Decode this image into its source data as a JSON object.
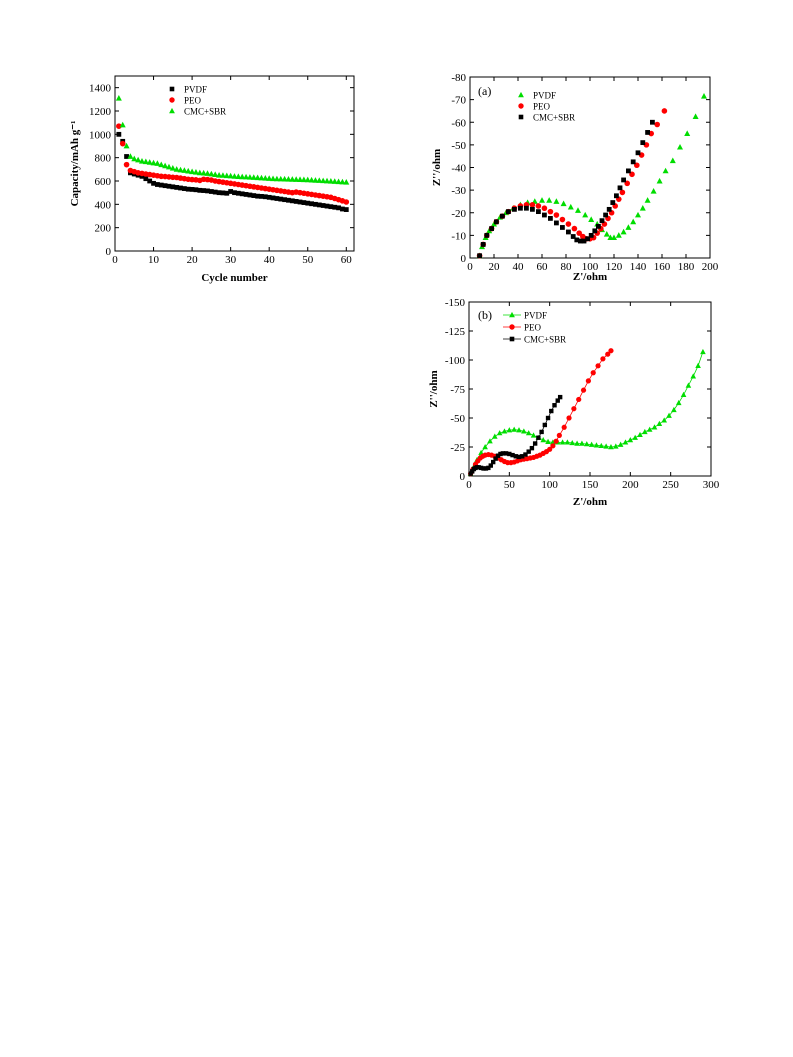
{
  "chart_data": [
    {
      "type": "scatter",
      "xlabel": "Cycle number",
      "ylabel": "Capacity/mAh g⁻¹",
      "xlim": [
        0,
        62
      ],
      "ylim": [
        0,
        1500
      ],
      "xticks": [
        0,
        10,
        20,
        30,
        40,
        50,
        60
      ],
      "yticks": [
        0,
        200,
        400,
        600,
        800,
        1000,
        1200,
        1400
      ],
      "legend": "top-center",
      "series": [
        {
          "name": "PVDF",
          "color": "#000000",
          "marker": "square",
          "x": [
            1,
            2,
            3,
            4,
            5,
            6,
            7,
            8,
            9,
            10,
            11,
            12,
            13,
            14,
            15,
            16,
            17,
            18,
            19,
            20,
            21,
            22,
            23,
            24,
            25,
            26,
            27,
            28,
            29,
            30,
            31,
            32,
            33,
            34,
            35,
            36,
            37,
            38,
            39,
            40,
            41,
            42,
            43,
            44,
            45,
            46,
            47,
            48,
            49,
            50,
            51,
            52,
            53,
            54,
            55,
            56,
            57,
            58,
            59,
            60
          ],
          "y": [
            1000,
            940,
            810,
            670,
            660,
            650,
            640,
            620,
            600,
            580,
            570,
            565,
            560,
            555,
            550,
            545,
            540,
            535,
            530,
            528,
            525,
            520,
            518,
            515,
            510,
            505,
            500,
            498,
            495,
            510,
            500,
            495,
            490,
            485,
            480,
            475,
            470,
            468,
            465,
            460,
            455,
            450,
            445,
            440,
            435,
            430,
            425,
            420,
            415,
            410,
            405,
            400,
            395,
            390,
            385,
            380,
            375,
            370,
            360,
            355
          ]
        },
        {
          "name": "PEO",
          "color": "#ff0000",
          "marker": "circle",
          "x": [
            1,
            2,
            3,
            4,
            5,
            6,
            7,
            8,
            9,
            10,
            11,
            12,
            13,
            14,
            15,
            16,
            17,
            18,
            19,
            20,
            21,
            22,
            23,
            24,
            25,
            26,
            27,
            28,
            29,
            30,
            31,
            32,
            33,
            34,
            35,
            36,
            37,
            38,
            39,
            40,
            41,
            42,
            43,
            44,
            45,
            46,
            47,
            48,
            49,
            50,
            51,
            52,
            53,
            54,
            55,
            56,
            57,
            58,
            59,
            60
          ],
          "y": [
            1070,
            920,
            740,
            690,
            680,
            670,
            665,
            660,
            655,
            650,
            645,
            640,
            638,
            635,
            632,
            630,
            625,
            620,
            615,
            612,
            610,
            605,
            615,
            612,
            608,
            600,
            595,
            590,
            585,
            580,
            575,
            570,
            565,
            560,
            555,
            550,
            545,
            540,
            535,
            530,
            525,
            520,
            515,
            510,
            505,
            500,
            505,
            500,
            495,
            490,
            485,
            480,
            475,
            470,
            465,
            460,
            450,
            440,
            430,
            420
          ]
        },
        {
          "name": "CMC+SBR",
          "color": "#00dd00",
          "marker": "triangle",
          "x": [
            1,
            2,
            3,
            4,
            5,
            6,
            7,
            8,
            9,
            10,
            11,
            12,
            13,
            14,
            15,
            16,
            17,
            18,
            19,
            20,
            21,
            22,
            23,
            24,
            25,
            26,
            27,
            28,
            29,
            30,
            31,
            32,
            33,
            34,
            35,
            36,
            37,
            38,
            39,
            40,
            41,
            42,
            43,
            44,
            45,
            46,
            47,
            48,
            49,
            50,
            51,
            52,
            53,
            54,
            55,
            56,
            57,
            58,
            59,
            60
          ],
          "y": [
            1310,
            1080,
            900,
            810,
            790,
            780,
            770,
            765,
            760,
            755,
            750,
            740,
            730,
            720,
            710,
            700,
            695,
            690,
            685,
            680,
            675,
            670,
            668,
            665,
            660,
            655,
            650,
            648,
            645,
            643,
            640,
            638,
            636,
            634,
            632,
            630,
            628,
            626,
            624,
            622,
            620,
            618,
            617,
            616,
            615,
            614,
            613,
            612,
            611,
            610,
            608,
            606,
            604,
            602,
            600,
            598,
            596,
            594,
            592,
            590
          ]
        }
      ]
    },
    {
      "type": "scatter",
      "panel_label": "(a)",
      "xlabel": "Z'/ohm",
      "ylabel": "Z''/ohm",
      "xlim": [
        0,
        200
      ],
      "ylim": [
        0,
        -80
      ],
      "xticks": [
        0,
        20,
        40,
        60,
        80,
        100,
        120,
        140,
        160,
        180,
        200
      ],
      "yticks": [
        0,
        -10,
        -20,
        -30,
        -40,
        -50,
        -60,
        -70,
        -80
      ],
      "legend": "top-left",
      "series": [
        {
          "name": "PVDF",
          "color": "#00dd00",
          "marker": "triangle",
          "x": [
            8,
            10,
            13,
            16,
            20,
            25,
            30,
            36,
            42,
            48,
            54,
            60,
            66,
            72,
            78,
            84,
            90,
            96,
            101,
            106,
            110,
            114,
            117,
            120,
            124,
            128,
            132,
            136,
            140,
            144,
            148,
            153,
            158,
            163,
            169,
            175,
            181,
            188,
            195
          ],
          "y": [
            -1,
            -5,
            -9,
            -12,
            -15,
            -18,
            -20,
            -22,
            -23.5,
            -24.5,
            -25,
            -25.5,
            -25.5,
            -25,
            -24,
            -22.5,
            -21,
            -19,
            -17,
            -15,
            -12.5,
            -10.5,
            -9,
            -9,
            -10,
            -11.5,
            -13.5,
            -16,
            -19,
            -22,
            -25.5,
            -29.5,
            -34,
            -38.5,
            -43,
            -49,
            -55,
            -62.5,
            -71.5
          ]
        },
        {
          "name": "PEO",
          "color": "#ff0000",
          "marker": "circle",
          "x": [
            8,
            11,
            14,
            18,
            22,
            27,
            32,
            37,
            42,
            47,
            52,
            57,
            62,
            67,
            72,
            77,
            82,
            87,
            91,
            94,
            97,
            100,
            103,
            106,
            109,
            112,
            115,
            118,
            121,
            124,
            127,
            131,
            135,
            139,
            143,
            147,
            151,
            156,
            162
          ],
          "y": [
            -1,
            -6,
            -10,
            -13,
            -16,
            -18.5,
            -20.5,
            -22,
            -23,
            -23.5,
            -23.5,
            -23,
            -22,
            -20.5,
            -19,
            -17,
            -15,
            -13,
            -11,
            -9.5,
            -8.5,
            -8.5,
            -9,
            -11,
            -13,
            -15,
            -17.5,
            -20,
            -23,
            -26,
            -29,
            -33,
            -37,
            -41,
            -45.5,
            -50,
            -55,
            -59,
            -65
          ]
        },
        {
          "name": "CMC+SBR",
          "color": "#000000",
          "marker": "square",
          "x": [
            8,
            11,
            14,
            18,
            22,
            27,
            32,
            37,
            42,
            47,
            52,
            57,
            62,
            67,
            72,
            77,
            82,
            86,
            89,
            92,
            95,
            98,
            101,
            104,
            107,
            110,
            113,
            116,
            119,
            122,
            125,
            128,
            132,
            136,
            140,
            144,
            148,
            152
          ],
          "y": [
            -1,
            -6,
            -10,
            -13,
            -16,
            -18.5,
            -20.5,
            -21.5,
            -22,
            -22,
            -21.5,
            -20.5,
            -19,
            -17.5,
            -15.5,
            -13.5,
            -11.5,
            -9.5,
            -8,
            -7.5,
            -7.5,
            -8.5,
            -10,
            -12,
            -14,
            -16.5,
            -19,
            -21.5,
            -24.5,
            -27.5,
            -31,
            -34.5,
            -38.5,
            -42.5,
            -46.5,
            -51,
            -55.5,
            -60
          ]
        }
      ]
    },
    {
      "type": "scatter",
      "panel_label": "(b)",
      "xlabel": "Z'/ohm",
      "ylabel": "Z''/ohm",
      "xlim": [
        0,
        300
      ],
      "ylim": [
        0,
        -150
      ],
      "xticks": [
        0,
        50,
        100,
        150,
        200,
        250,
        300
      ],
      "yticks": [
        0,
        -25,
        -50,
        -75,
        -100,
        -125,
        -150
      ],
      "legend": "top-left",
      "series": [
        {
          "name": "PVDF",
          "color": "#00dd00",
          "marker": "triangle",
          "x": [
            2,
            6,
            10,
            15,
            20,
            26,
            32,
            38,
            44,
            50,
            56,
            62,
            68,
            74,
            80,
            86,
            92,
            98,
            104,
            110,
            116,
            122,
            128,
            134,
            140,
            146,
            152,
            158,
            164,
            170,
            176,
            182,
            188,
            194,
            200,
            206,
            212,
            218,
            224,
            230,
            236,
            242,
            248,
            254,
            260,
            266,
            272,
            278,
            284,
            290
          ],
          "y": [
            -2,
            -8,
            -14,
            -20,
            -25,
            -30,
            -34,
            -37,
            -38.5,
            -39.5,
            -40,
            -39.5,
            -38.5,
            -37,
            -35,
            -33,
            -31,
            -29.5,
            -29,
            -29,
            -29,
            -29,
            -28.5,
            -28,
            -28,
            -27.5,
            -27,
            -26.5,
            -26,
            -25.5,
            -25,
            -25.5,
            -27,
            -29,
            -31,
            -33,
            -35.5,
            -38,
            -40,
            -42,
            -45,
            -48,
            -52,
            -57,
            -63,
            -70,
            -78,
            -86,
            -95,
            -107
          ]
        },
        {
          "name": "PEO",
          "color": "#ff0000",
          "marker": "circle",
          "x": [
            2,
            5,
            8,
            11,
            14,
            17,
            20,
            24,
            28,
            32,
            36,
            40,
            44,
            48,
            52,
            56,
            60,
            64,
            68,
            72,
            76,
            80,
            84,
            88,
            92,
            96,
            100,
            104,
            108,
            112,
            118,
            124,
            130,
            136,
            142,
            148,
            154,
            160,
            166,
            172,
            176
          ],
          "y": [
            -2,
            -6,
            -10,
            -13,
            -15.5,
            -17,
            -18,
            -18.5,
            -18,
            -17,
            -15.5,
            -14,
            -12.5,
            -11.5,
            -11.5,
            -12,
            -13,
            -14,
            -14.5,
            -15,
            -15.5,
            -16,
            -17,
            -18,
            -19.5,
            -21,
            -23,
            -26,
            -30,
            -35,
            -42,
            -50,
            -58,
            -66,
            -74,
            -82,
            -89,
            -95,
            -101,
            -105,
            -108
          ]
        },
        {
          "name": "CMC+SBR",
          "color": "#000000",
          "marker": "square",
          "x": [
            2,
            4,
            6,
            8,
            10,
            12,
            15,
            18,
            21,
            24,
            27,
            30,
            33,
            36,
            39,
            42,
            46,
            50,
            54,
            58,
            62,
            66,
            70,
            74,
            78,
            82,
            86,
            90,
            94,
            98,
            102,
            106,
            110,
            113
          ],
          "y": [
            -2,
            -4,
            -6,
            -7,
            -7.5,
            -7.5,
            -7,
            -6.5,
            -6.5,
            -7,
            -9,
            -12,
            -15,
            -17.5,
            -19,
            -19.5,
            -19.5,
            -19,
            -18,
            -17,
            -16.5,
            -17,
            -18.5,
            -21,
            -24,
            -28,
            -33,
            -38,
            -44,
            -50,
            -56,
            -61,
            -65,
            -68
          ]
        }
      ]
    }
  ]
}
